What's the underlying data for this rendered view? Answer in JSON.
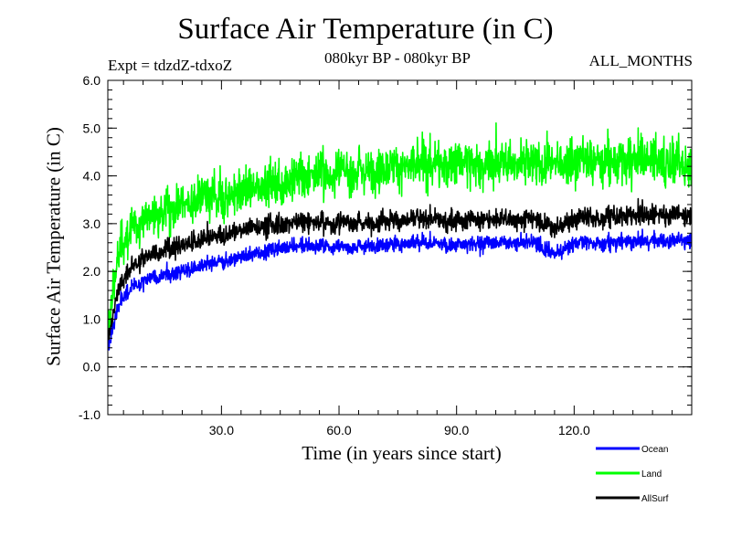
{
  "header": {
    "title": "Surface Air Temperature (in C)",
    "experiment": "Expt = tdzdZ-tdxoZ",
    "period": "080kyr BP - 080kyr BP",
    "months": "ALL_MONTHS"
  },
  "chart_data": {
    "type": "line",
    "title": "Surface Air Temperature (in C)",
    "xlabel": "Time (in years since start)",
    "ylabel": "Surface Air Temperature (in C)",
    "xlim": [
      1,
      150
    ],
    "ylim": [
      -1.0,
      6.0
    ],
    "xticks": [
      30,
      60,
      90,
      120
    ],
    "xtick_labels": [
      "30.0",
      "60.0",
      "90.0",
      "120.0"
    ],
    "yticks": [
      -1,
      0,
      1,
      2,
      3,
      4,
      5,
      6
    ],
    "ytick_labels": [
      "-1.0",
      "0.0",
      "1.0",
      "2.0",
      "3.0",
      "4.0",
      "5.0",
      "6.0"
    ],
    "reference_line": {
      "y": 0.0,
      "style": "dashed"
    },
    "legend_position": "bottom-right, outside plot",
    "series": [
      {
        "name": "Ocean",
        "color": "#0000ff",
        "x": [
          1,
          3,
          5,
          10,
          15,
          20,
          25,
          30,
          35,
          40,
          45,
          50,
          60,
          70,
          80,
          90,
          100,
          110,
          115,
          120,
          130,
          140,
          150
        ],
        "values": [
          0.3,
          1.1,
          1.5,
          1.8,
          1.95,
          2.0,
          2.1,
          2.2,
          2.3,
          2.4,
          2.5,
          2.55,
          2.5,
          2.55,
          2.6,
          2.55,
          2.6,
          2.6,
          2.35,
          2.6,
          2.6,
          2.65,
          2.65
        ],
        "noise": 0.15
      },
      {
        "name": "Land",
        "color": "#00ff00",
        "x": [
          1,
          3,
          5,
          10,
          15,
          20,
          25,
          30,
          35,
          40,
          45,
          50,
          60,
          70,
          80,
          90,
          100,
          110,
          115,
          120,
          130,
          140,
          150
        ],
        "values": [
          0.8,
          2.0,
          2.7,
          3.1,
          3.3,
          3.4,
          3.5,
          3.55,
          3.7,
          3.8,
          3.85,
          4.0,
          4.1,
          4.15,
          4.2,
          4.25,
          4.25,
          4.3,
          4.25,
          4.3,
          4.3,
          4.35,
          4.2
        ],
        "noise": 0.4
      },
      {
        "name": "AllSurf",
        "color": "#000000",
        "x": [
          1,
          3,
          5,
          10,
          15,
          20,
          25,
          30,
          35,
          40,
          45,
          50,
          60,
          70,
          80,
          90,
          100,
          110,
          115,
          120,
          130,
          140,
          150
        ],
        "values": [
          0.5,
          1.4,
          1.9,
          2.3,
          2.45,
          2.55,
          2.65,
          2.75,
          2.85,
          2.95,
          3.0,
          3.05,
          3.0,
          3.05,
          3.1,
          3.05,
          3.1,
          3.1,
          2.9,
          3.1,
          3.15,
          3.2,
          3.15
        ],
        "noise": 0.2
      }
    ]
  }
}
